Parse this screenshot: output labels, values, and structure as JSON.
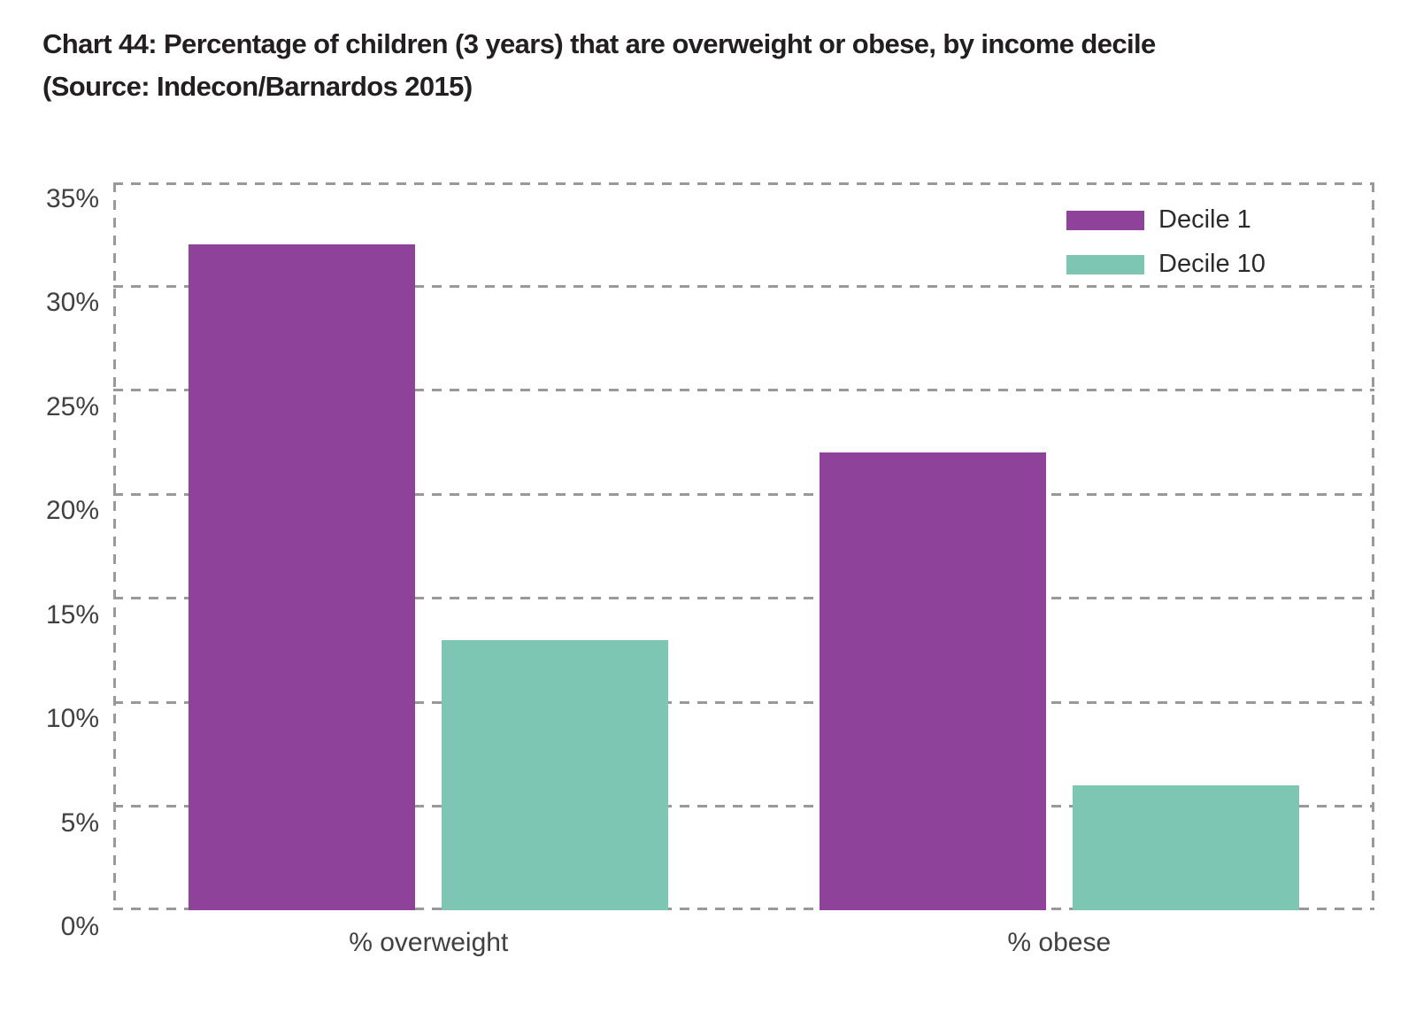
{
  "title": {
    "line1": "Chart 44: Percentage of children (3 years) that are overweight or obese, by income decile",
    "line2": "(Source: Indecon/Barnardos 2015)"
  },
  "chart_data": {
    "type": "bar",
    "title": "Chart 44: Percentage of children (3 years) that are overweight or obese, by income decile (Source: Indecon/Barnardos 2015)",
    "categories": [
      "% overweight",
      "% obese"
    ],
    "series": [
      {
        "name": "Decile 1",
        "color": "#8f4299",
        "values": [
          32,
          22
        ]
      },
      {
        "name": "Decile 10",
        "color": "#7dc6b4",
        "values": [
          13,
          6
        ]
      }
    ],
    "y_axis": {
      "ticks": [
        0,
        5,
        10,
        15,
        20,
        25,
        30,
        35
      ],
      "tick_labels": [
        "0%",
        "5%",
        "10%",
        "15%",
        "20%",
        "25%",
        "30%",
        "35%"
      ],
      "max": 35,
      "grid": "dashed"
    },
    "x_axis": {
      "labels": [
        "% overweight",
        "% obese"
      ]
    },
    "legend": {
      "position": "top-right",
      "entries": [
        "Decile 1",
        "Decile 10"
      ]
    },
    "colors": {
      "grid": "#999999",
      "title_text": "#231f20",
      "axis_text": "#414042"
    }
  }
}
